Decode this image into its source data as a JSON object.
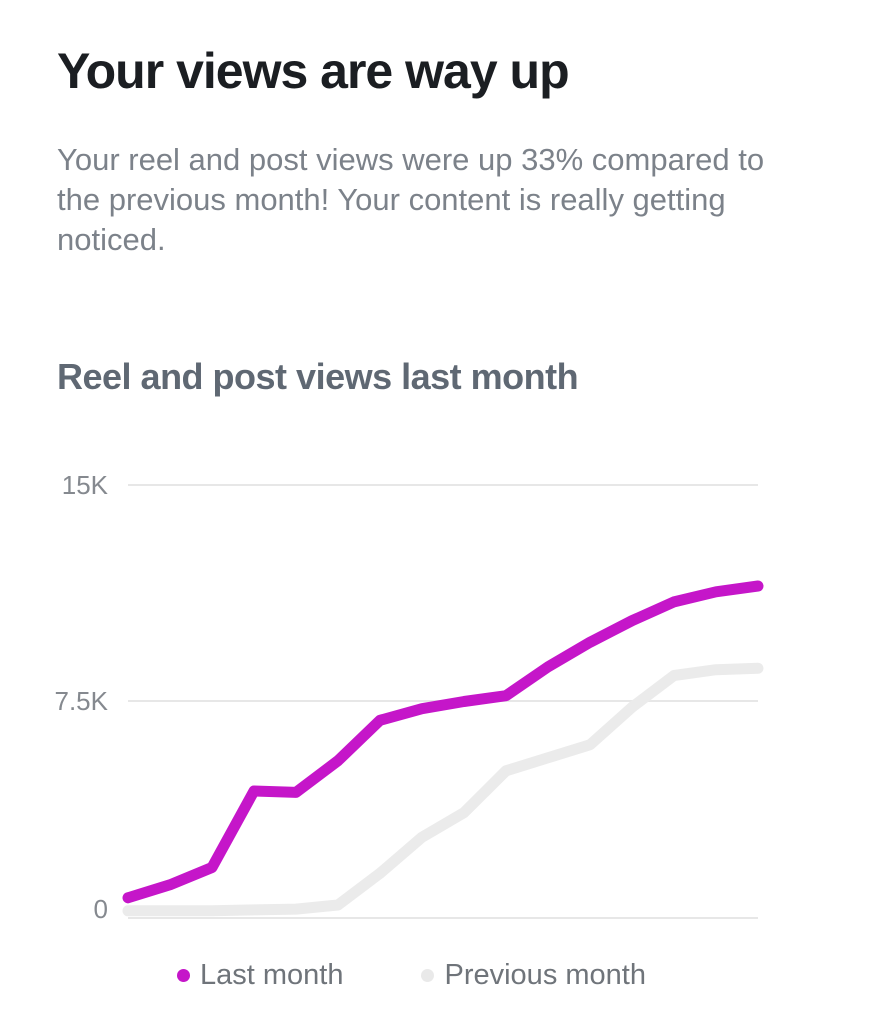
{
  "page": {
    "title": "Your views are way up",
    "subtitle": "Your reel and post views were up 33% compared to the previous month! Your content is really getting noticed."
  },
  "highlight": {
    "views_increase_percent": "33%"
  },
  "chart": {
    "heading": "Reel and post views last month",
    "y_ticks": [
      "15K",
      "7.5K",
      "0"
    ],
    "legend": [
      {
        "label": "Last month",
        "color": "#C516C9"
      },
      {
        "label": "Previous month",
        "color": "#E9E9E9"
      }
    ]
  },
  "chart_data": {
    "type": "line",
    "title": "Reel and post views last month",
    "xlabel": "",
    "ylabel": "",
    "ylim": [
      0,
      15000
    ],
    "y_tick_values": [
      0,
      7500,
      15000
    ],
    "y_tick_labels": [
      "0",
      "7.5K",
      "15K"
    ],
    "x_axis_labels_visible": false,
    "grid": "horizontal",
    "legend_position": "bottom",
    "series": [
      {
        "name": "Last month",
        "color": "#C516C9",
        "values": [
          700,
          1150,
          1750,
          4400,
          4350,
          5450,
          6850,
          7250,
          7500,
          7700,
          8700,
          9550,
          10300,
          10950,
          11300,
          11500
        ]
      },
      {
        "name": "Previous month",
        "color": "#EBEBEB",
        "values": [
          250,
          250,
          250,
          280,
          310,
          450,
          1550,
          2800,
          3650,
          5100,
          5550,
          6000,
          7300,
          8400,
          8600,
          8650
        ]
      }
    ]
  }
}
